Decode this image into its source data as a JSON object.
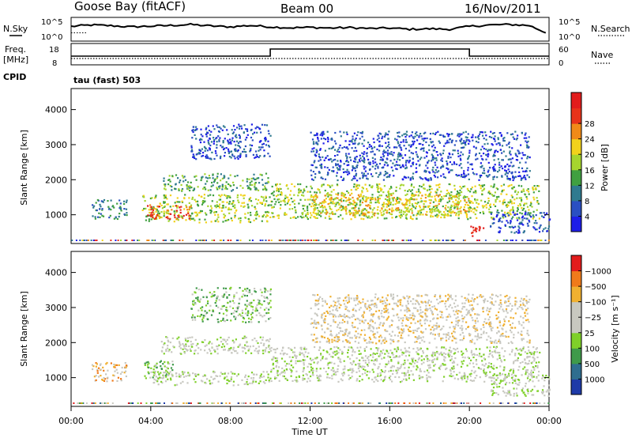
{
  "header": {
    "station": "Goose Bay (fitACF)",
    "beam": "Beam 00",
    "date": "16/Nov/2011"
  },
  "noise_panel": {
    "left_label": "N.Sky",
    "right_label": "N.Search",
    "left_ticks": [
      "10^5",
      "10^0"
    ],
    "right_ticks": [
      "10^5",
      "10^0"
    ],
    "series": [
      {
        "name": "N.Sky",
        "x_hours": [
          0,
          1,
          2,
          3,
          4,
          5,
          6,
          7,
          8,
          9,
          10,
          11,
          12,
          13,
          14,
          15,
          16,
          17,
          18,
          19,
          20,
          21,
          22,
          23,
          24
        ],
        "level": [
          0.62,
          0.68,
          0.65,
          0.6,
          0.63,
          0.66,
          0.7,
          0.64,
          0.6,
          0.66,
          0.6,
          0.56,
          0.58,
          0.55,
          0.57,
          0.53,
          0.55,
          0.5,
          0.52,
          0.5,
          0.62,
          0.68,
          0.7,
          0.66,
          0.3
        ]
      },
      {
        "name": "N.Search",
        "x_hours": [
          0,
          24
        ],
        "level": [
          0.35,
          0.35
        ]
      }
    ]
  },
  "freq_panel": {
    "left_label_1": "Freq.",
    "left_label_2": "[MHz]",
    "right_label": "Nave",
    "left_ticks": [
      "18",
      "8"
    ],
    "right_ticks": [
      "60",
      "0"
    ],
    "freq_steps": [
      {
        "from_h": 0,
        "to_h": 10,
        "level": "low"
      },
      {
        "from_h": 10,
        "to_h": 20,
        "level": "high"
      },
      {
        "from_h": 20,
        "to_h": 24,
        "level": "low"
      }
    ]
  },
  "cpid": {
    "label": "CPID",
    "text": "tau (fast) 503"
  },
  "chart_data": [
    {
      "type": "heatmap",
      "name": "power",
      "ylabel": "Slant Range [km]",
      "ylim": [
        180,
        4600
      ],
      "yticks": [
        1000,
        2000,
        3000,
        4000
      ],
      "xlim_hours": [
        0,
        24
      ],
      "colorbar": {
        "label": "Power [dB]",
        "ticks": [
          "4",
          "8",
          "12",
          "16",
          "20",
          "24",
          "28"
        ],
        "colors": [
          "#1e1ee8",
          "#2a4fc2",
          "#2f7a8f",
          "#40a040",
          "#a6d52e",
          "#f2d21b",
          "#f08a18",
          "#e8331a",
          "#e21c1c"
        ]
      },
      "blobs": [
        {
          "x0": 1,
          "x1": 2.8,
          "y0": 900,
          "y1": 1450,
          "level": 2
        },
        {
          "x0": 3.5,
          "x1": 10,
          "y0": 800,
          "y1": 1600,
          "level": 4
        },
        {
          "x0": 3.8,
          "x1": 6,
          "y0": 900,
          "y1": 1300,
          "level": 7
        },
        {
          "x0": 4.5,
          "x1": 10,
          "y0": 1700,
          "y1": 2200,
          "level": 3
        },
        {
          "x0": 10,
          "x1": 23.5,
          "y0": 900,
          "y1": 1900,
          "level": 4
        },
        {
          "x0": 12,
          "x1": 20,
          "y0": 1000,
          "y1": 1600,
          "level": 5
        },
        {
          "x0": 6,
          "x1": 10,
          "y0": 2600,
          "y1": 3600,
          "level": 1
        },
        {
          "x0": 12,
          "x1": 23,
          "y0": 2000,
          "y1": 3400,
          "level": 1
        },
        {
          "x0": 20,
          "x1": 20.7,
          "y0": 400,
          "y1": 700,
          "level": 8
        },
        {
          "x0": 21,
          "x1": 24,
          "y0": 500,
          "y1": 1100,
          "level": 1
        }
      ]
    },
    {
      "type": "heatmap",
      "name": "velocity",
      "ylabel": "Slant Range [km]",
      "ylim": [
        180,
        4600
      ],
      "yticks": [
        1000,
        2000,
        3000,
        4000
      ],
      "xlim_hours": [
        0,
        24
      ],
      "colorbar": {
        "label": "Velocity [m s⁻¹]",
        "ticks": [
          "1000",
          "500",
          "100",
          "25",
          "−25",
          "−100",
          "−500",
          "−1000"
        ],
        "colors": [
          "#1e3aa8",
          "#2f6e8f",
          "#3f9a4a",
          "#7fd02a",
          "#c8c8c0",
          "#c8c8c0",
          "#f0b030",
          "#f07a1a",
          "#e21c1c"
        ]
      },
      "blobs": [
        {
          "x0": 1,
          "x1": 2.8,
          "y0": 900,
          "y1": 1450,
          "level": 6
        },
        {
          "x0": 3.5,
          "x1": 5.2,
          "y0": 1000,
          "y1": 1500,
          "level": 3
        },
        {
          "x0": 4,
          "x1": 10,
          "y0": 800,
          "y1": 1200,
          "level": 4
        },
        {
          "x0": 4.5,
          "x1": 10,
          "y0": 1700,
          "y1": 2200,
          "level": 4
        },
        {
          "x0": 10,
          "x1": 23.5,
          "y0": 900,
          "y1": 1900,
          "level": 4
        },
        {
          "x0": 6,
          "x1": 10,
          "y0": 2600,
          "y1": 3600,
          "level": 3
        },
        {
          "x0": 12,
          "x1": 23,
          "y0": 2000,
          "y1": 3400,
          "level": 5
        },
        {
          "x0": 21,
          "x1": 24,
          "y0": 500,
          "y1": 1100,
          "level": 4
        }
      ]
    }
  ],
  "x_axis": {
    "label": "Time UT",
    "ticks": [
      "00:00",
      "04:00",
      "08:00",
      "12:00",
      "16:00",
      "20:00",
      "00:00"
    ]
  }
}
